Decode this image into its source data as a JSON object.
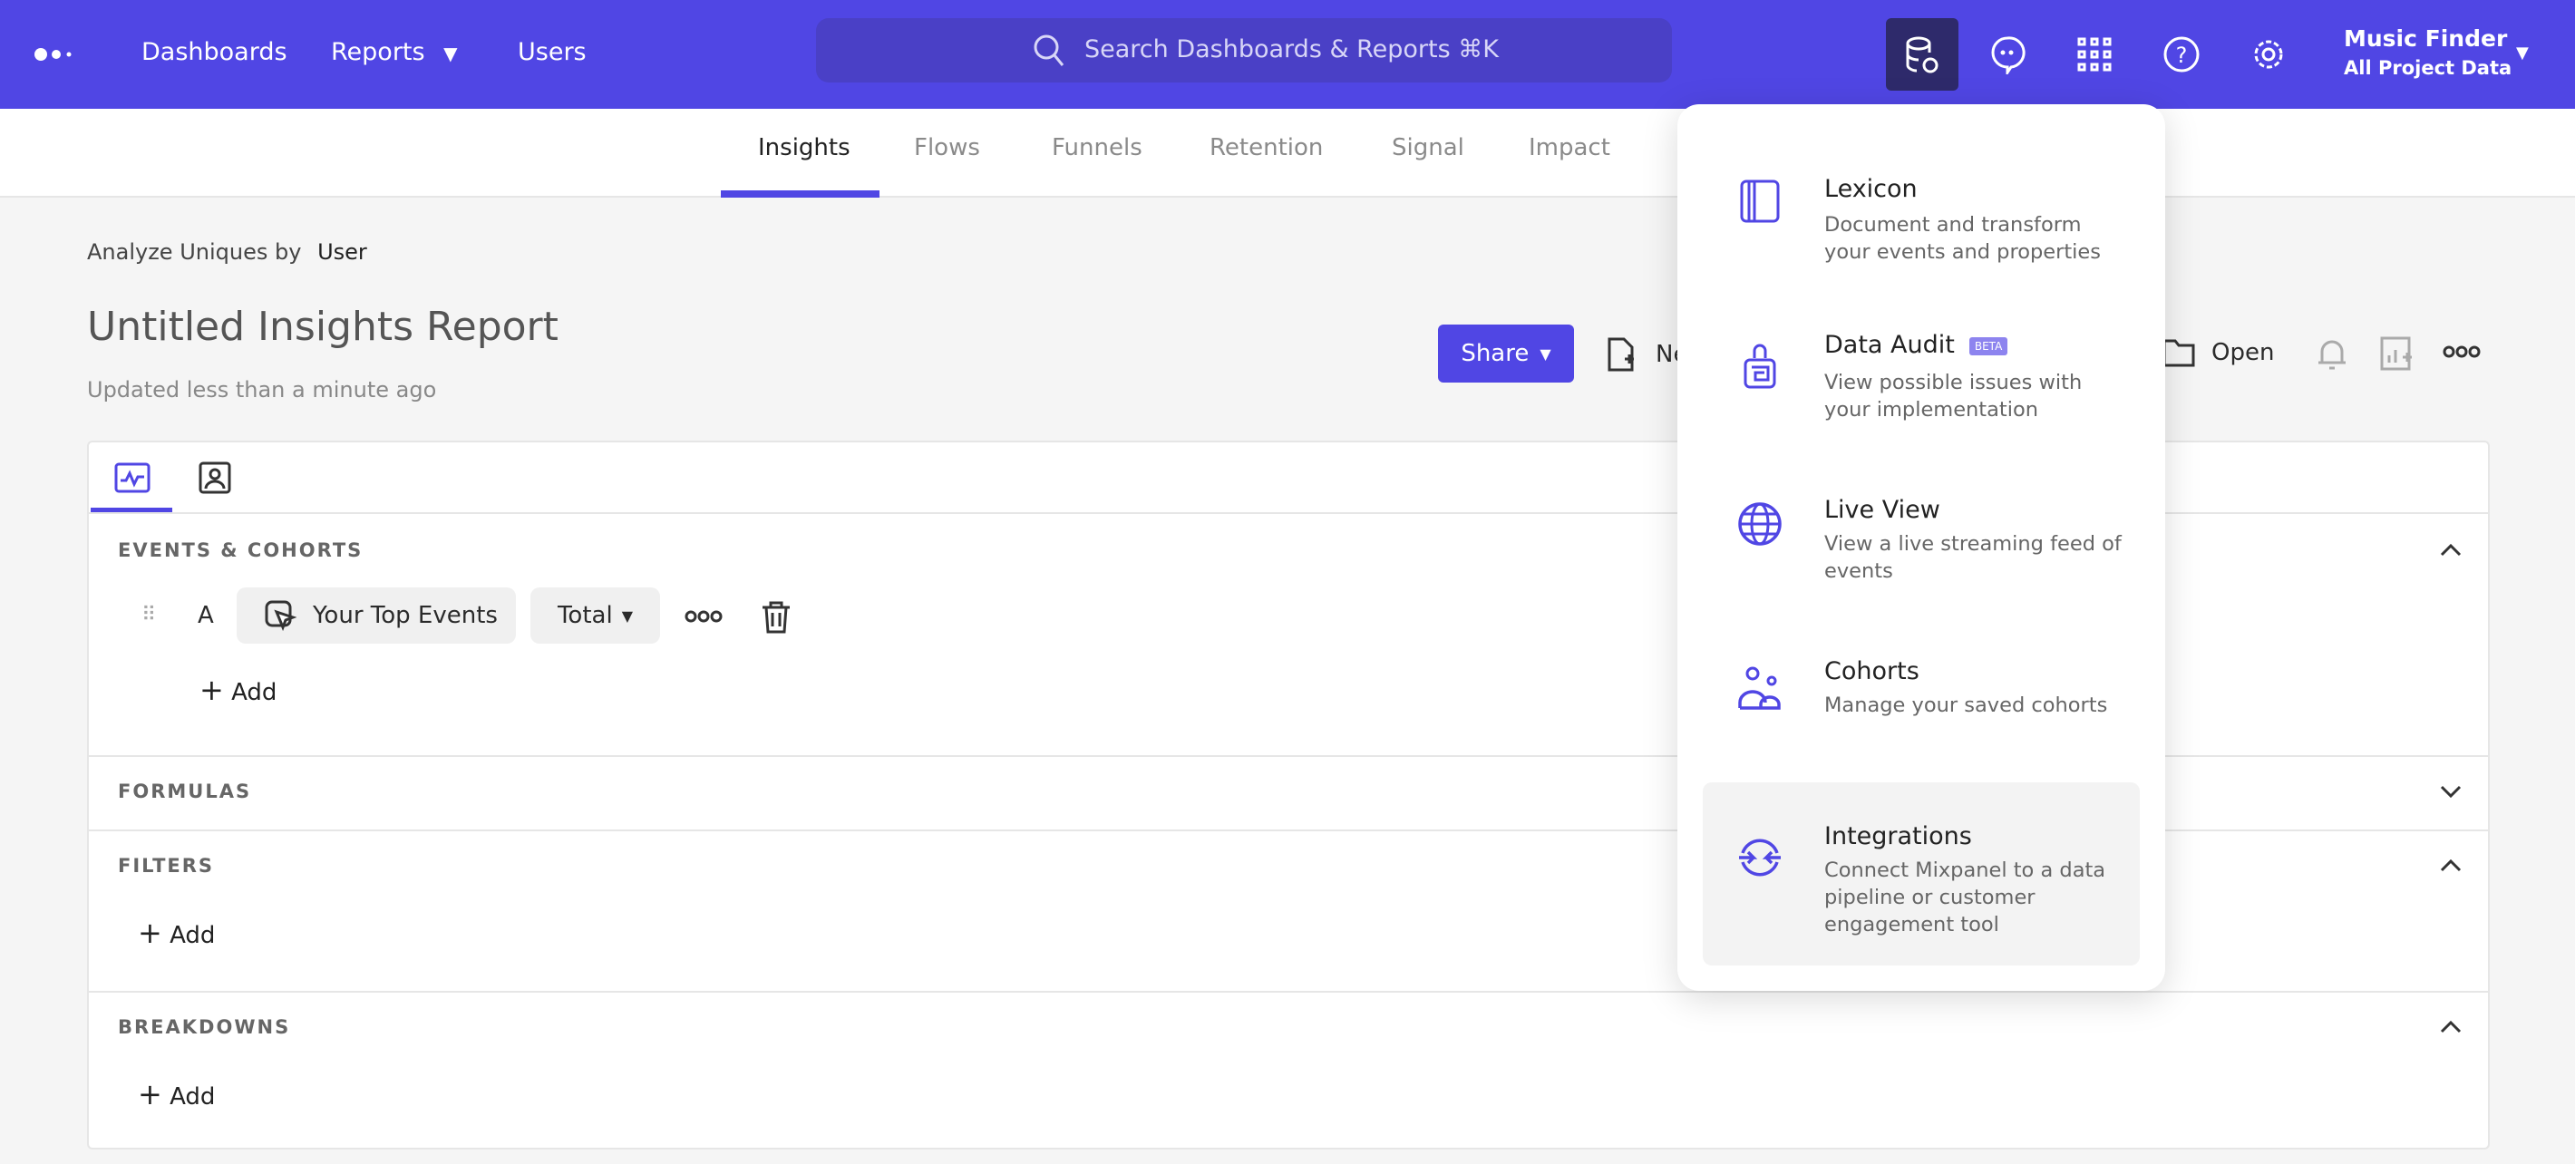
{
  "header": {
    "nav": [
      "Dashboards",
      "Reports",
      "Users"
    ],
    "search_placeholder": "Search Dashboards & Reports ⌘K",
    "project": {
      "name": "Music Finder",
      "scope": "All Project Data"
    },
    "accent": "#5046e4"
  },
  "tabs": [
    "Insights",
    "Flows",
    "Funnels",
    "Retention",
    "Signal",
    "Impact"
  ],
  "report": {
    "analyze_label": "Analyze Uniques by",
    "analyze_value": "User",
    "title": "Untitled Insights Report",
    "updated": "Updated less than a minute ago",
    "share": "Share",
    "new": "New",
    "open": "Open"
  },
  "sections": {
    "events": "EVENTS & COHORTS",
    "formulas": "FORMULAS",
    "filters": "FILTERS",
    "breakdowns": "BREAKDOWNS",
    "add": "Add",
    "event_letter": "A",
    "event_name": "Your Top Events",
    "measure": "Total"
  },
  "menu": [
    {
      "title": "Lexicon",
      "desc": "Document and transform your events and properties"
    },
    {
      "title": "Data Audit",
      "badge": "BETA",
      "desc": "View possible issues with your implementation"
    },
    {
      "title": "Live View",
      "desc": "View a live streaming feed of events"
    },
    {
      "title": "Cohorts",
      "desc": "Manage your saved cohorts"
    },
    {
      "title": "Integrations",
      "desc": "Connect Mixpanel to a data pipeline or customer engagement tool"
    }
  ]
}
